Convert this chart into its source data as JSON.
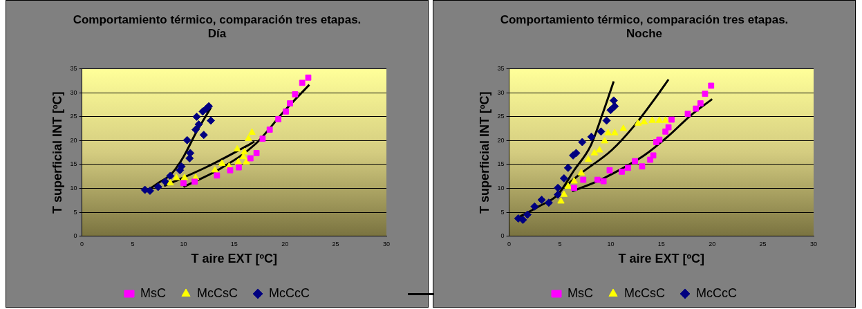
{
  "chart_data": [
    {
      "type": "scatter",
      "title": "Comportamiento térmico, comparación tres etapas. Día",
      "xlabel": "T aire EXT [ºC]",
      "ylabel": "T superficial INT [ºC]",
      "xlim": [
        0,
        30
      ],
      "xticks": [
        0,
        5,
        10,
        15,
        20,
        25,
        30
      ],
      "ylim": [
        0,
        35
      ],
      "yticks": [
        0,
        5,
        10,
        15,
        20,
        25,
        30,
        35
      ],
      "grid": "y",
      "legend": "bottom",
      "series": [
        {
          "name": "MsC",
          "color": "#ff00ff",
          "marker": "square",
          "x": [
            10.0,
            11.1,
            13.3,
            14.6,
            15.45,
            16.6,
            17.2,
            17.8,
            18.5,
            19.35,
            20.1,
            20.5,
            21.0,
            21.7,
            22.3
          ],
          "values": [
            11.1,
            11.4,
            12.7,
            13.8,
            14.4,
            16.3,
            17.4,
            20.4,
            22.3,
            24.5,
            26.1,
            27.8,
            29.7,
            32.1,
            33.2
          ]
        },
        {
          "name": "McCsC",
          "color": "#ffff00",
          "marker": "triangle",
          "x": [
            8.7,
            9.3,
            10.1,
            11.2,
            13.1,
            13.8,
            14.5,
            15.4,
            15.3,
            16.2,
            16.0,
            16.75,
            16.4,
            15.9
          ],
          "values": [
            11.1,
            12.2,
            12.2,
            12.2,
            13.8,
            15.2,
            14.6,
            15.5,
            18.2,
            15.5,
            17.6,
            21.7,
            20.4,
            16.6
          ]
        },
        {
          "name": "McCcC",
          "color": "#000080",
          "marker": "diamond",
          "x": [
            6.2,
            6.7,
            7.5,
            8.2,
            8.7,
            9.65,
            9.8,
            10.6,
            10.67,
            10.36,
            12.0,
            11.2,
            11.5,
            11.3,
            11.9,
            12.5,
            12.7,
            12.25
          ],
          "values": [
            9.7,
            9.5,
            10.3,
            11.4,
            12.6,
            13.8,
            14.6,
            16.3,
            17.4,
            20.1,
            21.2,
            22.3,
            23.4,
            25.0,
            26.1,
            27.2,
            24.2,
            26.7
          ]
        },
        {
          "type": "line",
          "color": "#000000",
          "x": [
            10.0,
            13.6,
            17.1,
            19.9,
            22.4
          ],
          "values": [
            10.3,
            14.1,
            19.3,
            26.1,
            31.7
          ]
        },
        {
          "type": "line",
          "color": "#000000",
          "x": [
            8.1,
            12.4,
            15.9,
            17.0
          ],
          "values": [
            10.5,
            14.6,
            18.5,
            19.8
          ]
        },
        {
          "type": "line",
          "color": "#000000",
          "x": [
            6.2,
            7.5,
            8.8,
            10.0,
            11.2,
            12.7
          ],
          "values": [
            9.2,
            11.1,
            13.0,
            16.6,
            21.5,
            26.9
          ]
        }
      ]
    },
    {
      "type": "scatter",
      "title": "Comportamiento térmico, comparación tres etapas. Noche",
      "xlabel": "T aire EXT [ºC]",
      "ylabel": "T superficial INT [ºC]",
      "xlim": [
        0,
        30
      ],
      "xticks": [
        0,
        5,
        10,
        15,
        20,
        25,
        30
      ],
      "ylim": [
        0,
        35
      ],
      "yticks": [
        0,
        5,
        10,
        15,
        20,
        25,
        30,
        35
      ],
      "grid": "y",
      "legend": "bottom",
      "series": [
        {
          "name": "MsC",
          "color": "#ff00ff",
          "marker": "square",
          "x": [
            6.4,
            7.3,
            8.7,
            9.3,
            9.9,
            11.1,
            11.7,
            12.4,
            13.1,
            13.9,
            14.2,
            14.5,
            14.8,
            15.4,
            15.7,
            16.0,
            17.6,
            18.4,
            18.85,
            19.3,
            19.9
          ],
          "values": [
            10.1,
            11.8,
            11.8,
            11.5,
            13.8,
            13.5,
            14.3,
            15.7,
            14.6,
            16.0,
            16.9,
            19.7,
            20.2,
            21.9,
            22.8,
            24.4,
            25.6,
            26.7,
            27.8,
            29.8,
            31.5
          ]
        },
        {
          "name": "McCsC",
          "color": "#ffff00",
          "marker": "triangle",
          "x": [
            5.1,
            5.4,
            5.8,
            6.4,
            7.1,
            7.8,
            8.4,
            8.9,
            9.4,
            9.75,
            10.4,
            11.25,
            12.7,
            13.3,
            14.1,
            14.8,
            15.4
          ],
          "values": [
            7.3,
            8.7,
            10.4,
            11.5,
            13.2,
            16.0,
            17.4,
            18.0,
            19.9,
            21.6,
            21.6,
            22.5,
            23.6,
            23.9,
            24.2,
            24.2,
            24.2
          ]
        },
        {
          "name": "McCcC",
          "color": "#000080",
          "marker": "diamond",
          "x": [
            0.9,
            1.35,
            1.8,
            2.5,
            3.2,
            3.9,
            4.8,
            4.8,
            5.4,
            5.8,
            6.3,
            6.6,
            7.2,
            8.1,
            9.05,
            9.6,
            10.0,
            10.3,
            10.4
          ],
          "values": [
            3.7,
            3.4,
            4.5,
            6.2,
            7.6,
            7.0,
            8.7,
            10.1,
            12.1,
            14.3,
            16.9,
            17.4,
            19.7,
            20.8,
            21.9,
            24.2,
            26.4,
            28.4,
            27.2
          ]
        },
        {
          "type": "line",
          "color": "#000000",
          "x": [
            6.2,
            8.7,
            11.0,
            13.3,
            15.6,
            17.9,
            20.0
          ],
          "values": [
            9.4,
            11.5,
            14.0,
            16.9,
            20.8,
            25.3,
            28.7
          ]
        },
        {
          "type": "line",
          "color": "#000000",
          "x": [
            5.5,
            7.1,
            10.1,
            12.4,
            14.5,
            15.7
          ],
          "values": [
            10.4,
            13.2,
            18.0,
            23.3,
            29.2,
            32.8
          ]
        },
        {
          "type": "line",
          "color": "#000000",
          "x": [
            0.9,
            2.9,
            4.8,
            6.4,
            8.0,
            9.2,
            10.3
          ],
          "values": [
            3.9,
            6.2,
            8.7,
            13.8,
            18.8,
            25.6,
            32.4
          ]
        }
      ]
    }
  ]
}
